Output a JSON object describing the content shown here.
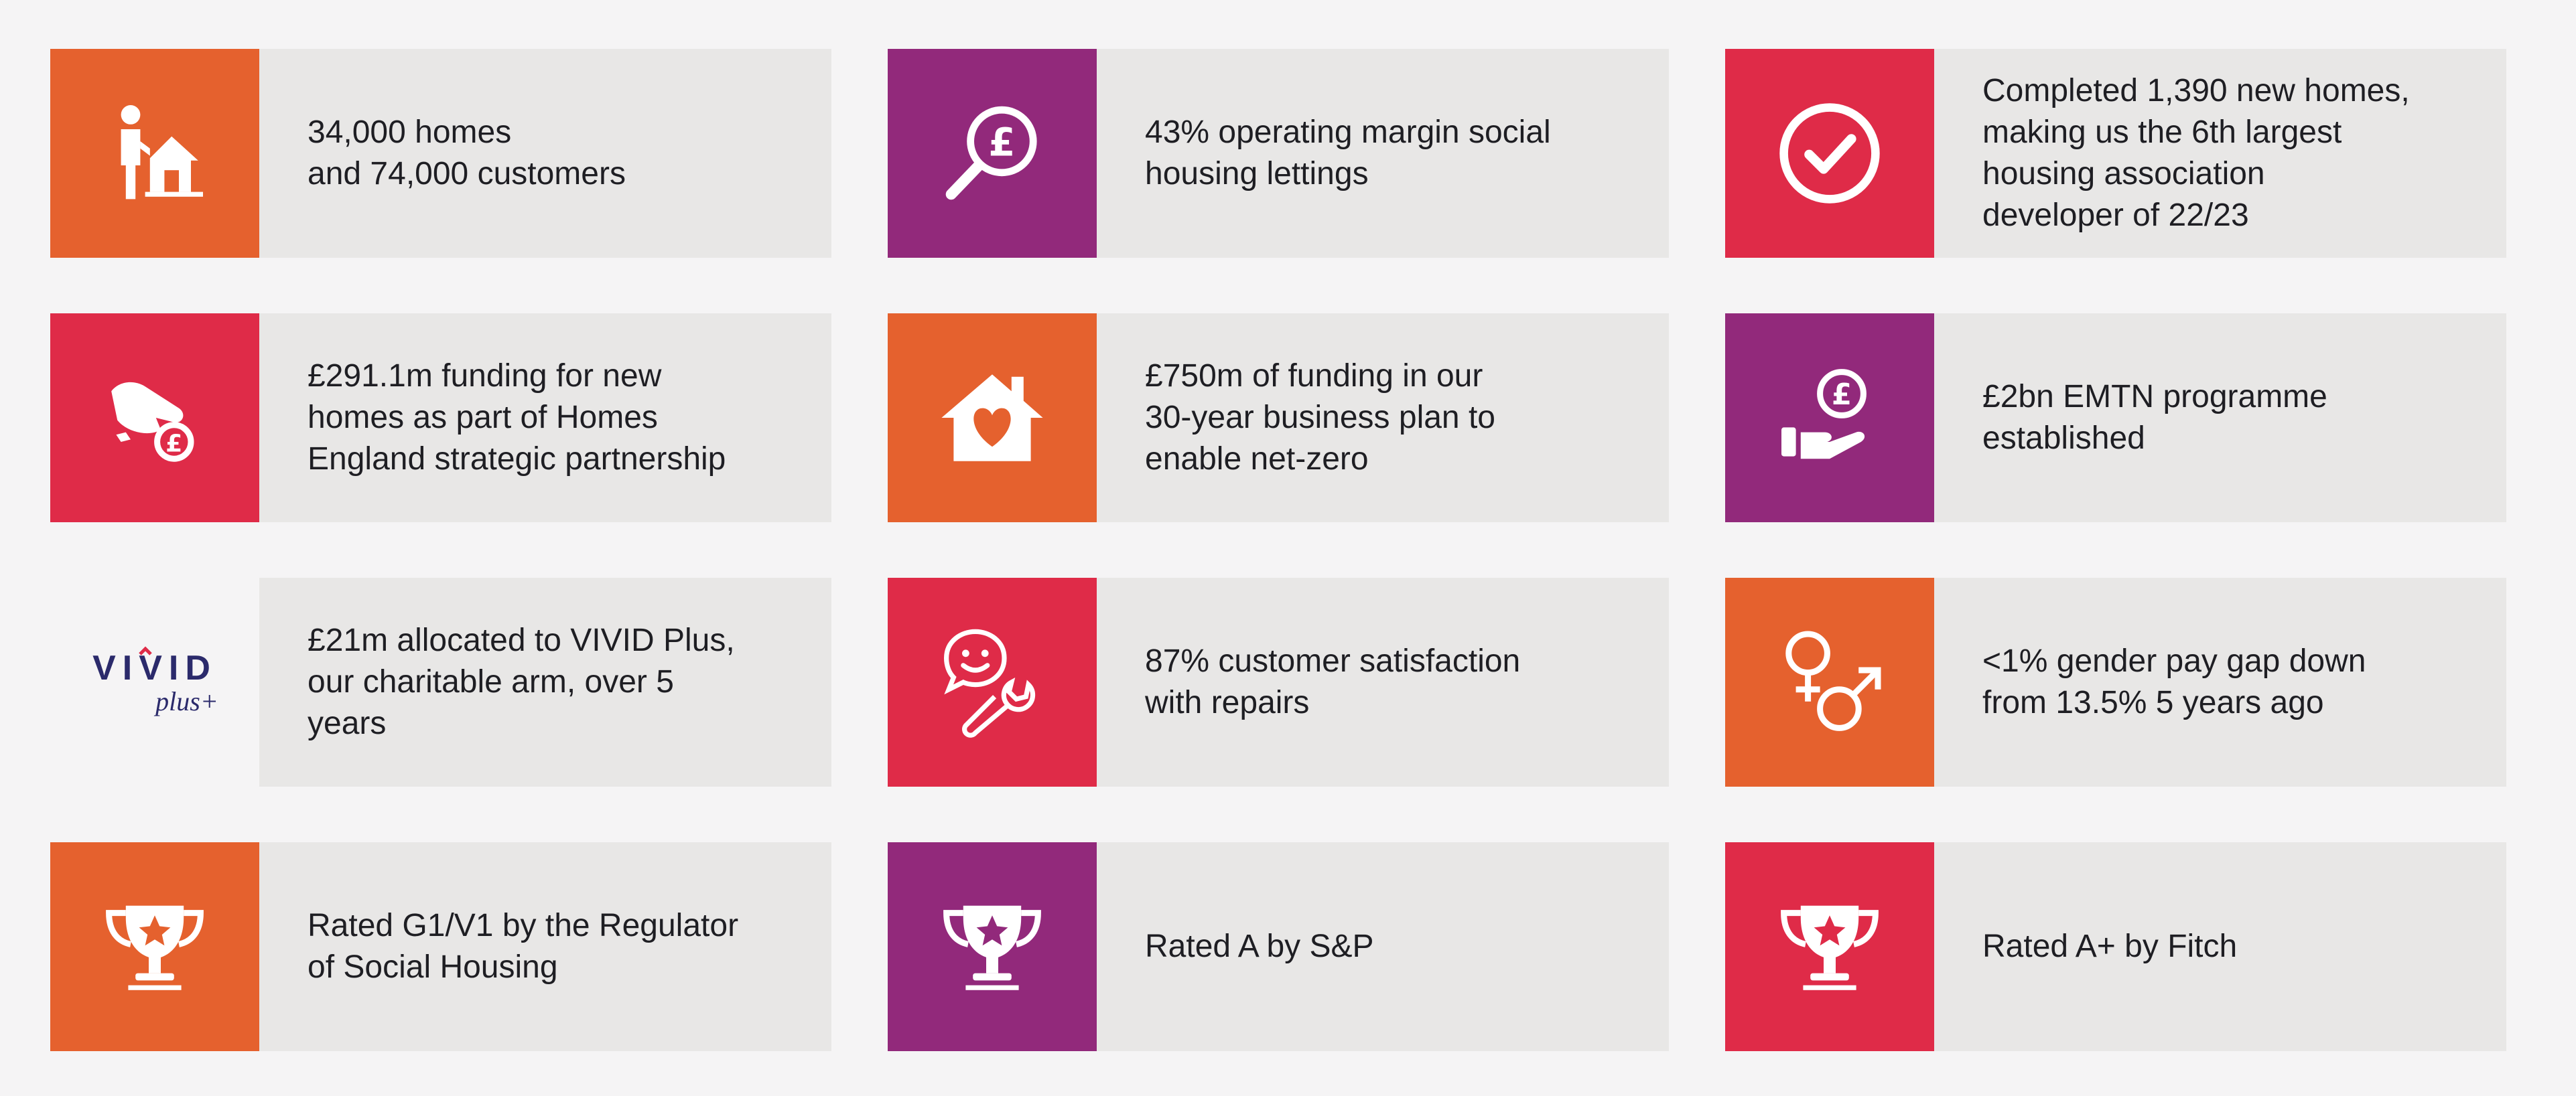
{
  "colors": {
    "orange": "#e5612e",
    "purple": "#92297b",
    "red": "#df2b48",
    "panel": "#e8e7e6",
    "text": "#1e1e23"
  },
  "cards": [
    {
      "icon": "person-house-icon",
      "color": "orange",
      "text": "34,000 homes\nand 74,000 customers"
    },
    {
      "icon": "magnifier-pound-icon",
      "color": "purple",
      "text": "43% operating margin social\nhousing lettings"
    },
    {
      "icon": "check-circle-icon",
      "color": "red",
      "text": "Completed 1,390 new homes,\nmaking us the 6th largest\nhousing association\ndeveloper of 22/23"
    },
    {
      "icon": "hand-pound-coin-icon",
      "color": "red",
      "text": "£291.1m funding for new\nhomes as part of Homes\nEngland strategic partnership"
    },
    {
      "icon": "house-heart-icon",
      "color": "orange",
      "text": "£750m of funding in our\n30-year business plan to\nenable net-zero"
    },
    {
      "icon": "hand-pound-icon",
      "color": "purple",
      "text": "£2bn EMTN programme\nestablished"
    },
    {
      "icon": "vivid-plus-logo",
      "color": "plain",
      "text": "£21m allocated to VIVID Plus,\nour charitable arm, over 5\nyears",
      "logo_word": "VIVID",
      "logo_sub": "plus+"
    },
    {
      "icon": "smiley-wrench-icon",
      "color": "red",
      "text": "87% customer satisfaction\nwith repairs"
    },
    {
      "icon": "gender-symbols-icon",
      "color": "orange",
      "text": "<1% gender pay gap down\nfrom 13.5% 5 years ago"
    },
    {
      "icon": "trophy-star-icon",
      "color": "orange",
      "text": "Rated G1/V1 by the Regulator\nof Social Housing"
    },
    {
      "icon": "trophy-star-icon",
      "color": "purple",
      "text": "Rated A by S&P"
    },
    {
      "icon": "trophy-star-icon",
      "color": "red",
      "text": "Rated A+ by Fitch"
    }
  ]
}
